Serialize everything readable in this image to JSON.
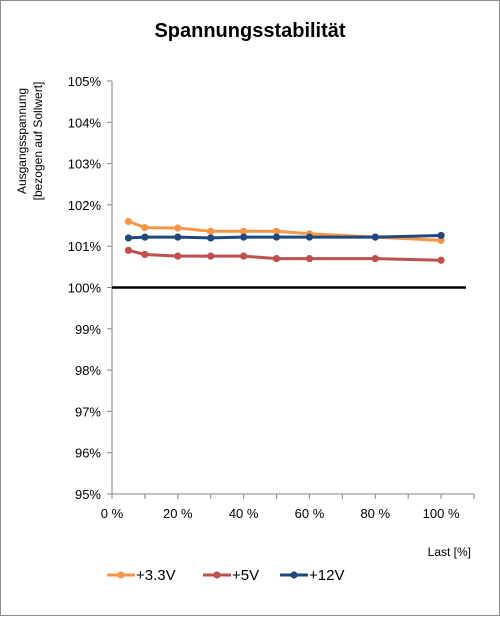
{
  "chart_data": {
    "type": "line",
    "title": "Spannungsstabilität",
    "ylabel_lines": [
      "Ausgangsspannung",
      "[bezogen auf Sollwert]"
    ],
    "xlabel": "Last [%]",
    "xlim": [
      0,
      110
    ],
    "ylim": [
      95,
      105
    ],
    "x_ticks": [
      0,
      20,
      40,
      60,
      80,
      100
    ],
    "x_tick_labels": [
      "0 %",
      "20 %",
      "40 %",
      "60 %",
      "80 %",
      "100 %"
    ],
    "y_ticks": [
      95,
      96,
      97,
      98,
      99,
      100,
      101,
      102,
      103,
      104,
      105
    ],
    "y_tick_labels": [
      "95%",
      "96%",
      "97%",
      "98%",
      "99%",
      "100%",
      "101%",
      "102%",
      "103%",
      "104%",
      "105%"
    ],
    "grid": false,
    "legend_position": "bottom",
    "reference_line": {
      "y": 100,
      "color": "#000000"
    },
    "series": [
      {
        "name": "+3.3V",
        "color": "#F79646",
        "x": [
          5,
          10,
          20,
          30,
          40,
          50,
          60,
          80,
          100
        ],
        "y": [
          101.6,
          101.45,
          101.44,
          101.36,
          101.36,
          101.36,
          101.3,
          101.22,
          101.14
        ]
      },
      {
        "name": "+5V",
        "color": "#C0504D",
        "x": [
          5,
          10,
          20,
          30,
          40,
          50,
          60,
          80,
          100
        ],
        "y": [
          100.9,
          100.8,
          100.76,
          100.76,
          100.76,
          100.7,
          100.7,
          100.7,
          100.66
        ]
      },
      {
        "name": "+12V",
        "color": "#1F497D",
        "x": [
          5,
          10,
          20,
          30,
          40,
          50,
          60,
          80,
          100
        ],
        "y": [
          101.2,
          101.22,
          101.22,
          101.2,
          101.22,
          101.22,
          101.22,
          101.22,
          101.26
        ]
      }
    ]
  }
}
